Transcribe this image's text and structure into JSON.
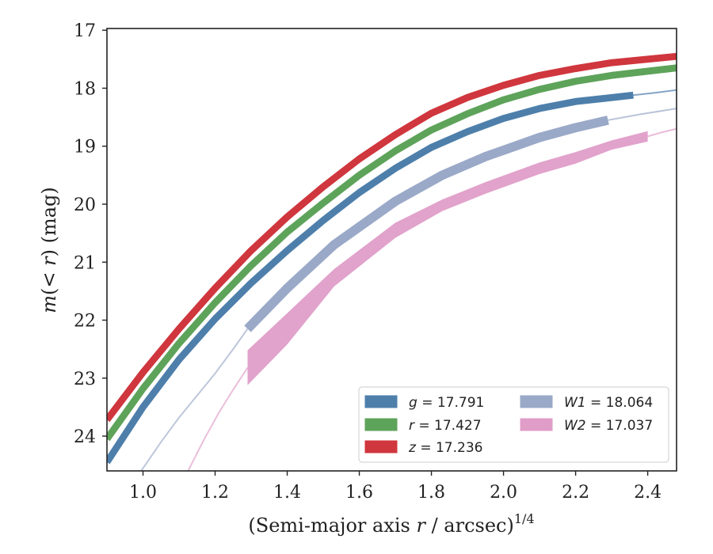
{
  "chart_data": {
    "type": "line",
    "title": "",
    "xlabel": "(Semi-major axis r / arcsec)",
    "xlabel_parts": {
      "pre": "(Semi-major axis ",
      "var": "r",
      "post": " / arcsec)",
      "sup": "1/4"
    },
    "ylabel": "m(< r) (mag)",
    "ylabel_parts": {
      "var": "m",
      "mid": "(< ",
      "var2": "r",
      "post": ") (mag)"
    },
    "xlim": [
      0.9,
      2.48
    ],
    "ylim": [
      24.6,
      16.97
    ],
    "y_inverted": true,
    "xticks": [
      "1.0",
      "1.2",
      "1.4",
      "1.6",
      "1.8",
      "2.0",
      "2.2",
      "2.4"
    ],
    "xtick_values": [
      1.0,
      1.2,
      1.4,
      1.6,
      1.8,
      2.0,
      2.2,
      2.4
    ],
    "yticks": [
      "17",
      "18",
      "19",
      "20",
      "21",
      "22",
      "23",
      "24"
    ],
    "ytick_values": [
      17,
      18,
      19,
      20,
      21,
      22,
      23,
      24
    ],
    "grid": false,
    "legend_position": "lower-right",
    "series": [
      {
        "name": "g = 17.791",
        "band": "g",
        "value": "17.791",
        "color": "#4e7fab",
        "x": [
          0.9,
          1.0,
          1.1,
          1.2,
          1.3,
          1.4,
          1.5,
          1.6,
          1.7,
          1.8,
          1.9,
          2.0,
          2.1,
          2.2,
          2.36
        ],
        "y": [
          24.45,
          23.5,
          22.68,
          21.98,
          21.36,
          20.8,
          20.28,
          19.8,
          19.38,
          19.02,
          18.75,
          18.52,
          18.35,
          18.23,
          18.12
        ],
        "band_width": 0.12,
        "tail_x": [
          2.36,
          2.42,
          2.48
        ],
        "tail_y": [
          18.12,
          18.08,
          18.03
        ]
      },
      {
        "name": "r = 17.427",
        "band": "r",
        "value": "17.427",
        "color": "#5ea35a",
        "x": [
          0.9,
          1.0,
          1.1,
          1.2,
          1.3,
          1.4,
          1.5,
          1.6,
          1.7,
          1.8,
          1.9,
          2.0,
          2.1,
          2.2,
          2.3,
          2.48
        ],
        "y": [
          24.05,
          23.18,
          22.4,
          21.7,
          21.06,
          20.48,
          19.98,
          19.5,
          19.08,
          18.72,
          18.44,
          18.2,
          18.02,
          17.88,
          17.78,
          17.65
        ],
        "band_width": 0.12
      },
      {
        "name": "z = 17.236",
        "band": "z",
        "value": "17.236",
        "color": "#d0363d",
        "x": [
          0.9,
          1.0,
          1.1,
          1.2,
          1.3,
          1.4,
          1.5,
          1.6,
          1.7,
          1.8,
          1.9,
          2.0,
          2.1,
          2.2,
          2.3,
          2.48
        ],
        "y": [
          23.72,
          22.9,
          22.15,
          21.45,
          20.8,
          20.22,
          19.7,
          19.22,
          18.8,
          18.43,
          18.16,
          17.95,
          17.78,
          17.66,
          17.56,
          17.45
        ],
        "band_width": 0.12
      },
      {
        "name": "W1 = 18.064",
        "band": "W1",
        "value": "18.064",
        "color": "#9aa9c8",
        "x": [
          1.29,
          1.4,
          1.53,
          1.7,
          1.83,
          1.95,
          2.1,
          2.2,
          2.29
        ],
        "y": [
          22.15,
          21.45,
          20.7,
          19.95,
          19.5,
          19.18,
          18.85,
          18.68,
          18.55
        ],
        "band_width": 0.16,
        "lead_x": [
          0.995,
          1.05,
          1.1,
          1.15,
          1.2,
          1.25,
          1.29
        ],
        "lead_y": [
          24.6,
          24.1,
          23.68,
          23.3,
          22.92,
          22.5,
          22.15
        ],
        "tail_x": [
          2.29,
          2.38,
          2.48
        ],
        "tail_y": [
          18.55,
          18.45,
          18.35
        ]
      },
      {
        "name": "W2 = 17.037",
        "band": "W2",
        "value": "17.037",
        "color": "#df9dc8",
        "x": [
          1.29,
          1.4,
          1.53,
          1.7,
          1.83,
          1.95,
          2.1,
          2.2,
          2.3,
          2.4
        ],
        "y": [
          22.82,
          22.15,
          21.27,
          20.45,
          20.02,
          19.72,
          19.38,
          19.2,
          18.98,
          18.83
        ],
        "band_lower": [
          23.12,
          22.42,
          21.42,
          20.58,
          20.12,
          19.82,
          19.48,
          19.3,
          19.06,
          18.92
        ],
        "band_upper": [
          22.52,
          21.88,
          21.12,
          20.32,
          19.92,
          19.62,
          19.28,
          19.1,
          18.9,
          18.74
        ],
        "lead_x": [
          1.125,
          1.17,
          1.21,
          1.25,
          1.29
        ],
        "lead_y": [
          24.6,
          24.05,
          23.6,
          23.2,
          22.82
        ],
        "tail_x": [
          2.4,
          2.44,
          2.48
        ],
        "tail_y": [
          18.83,
          18.76,
          18.7
        ]
      }
    ]
  }
}
